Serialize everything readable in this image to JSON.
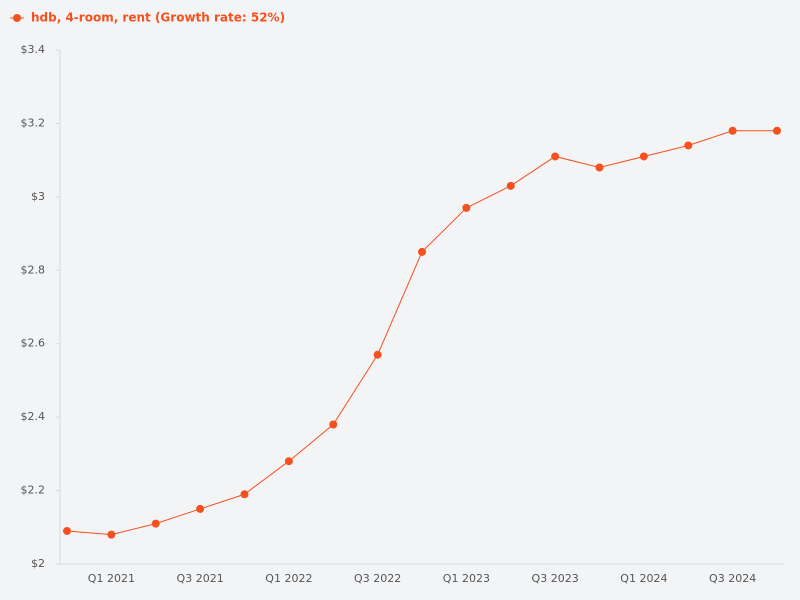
{
  "chart_data": {
    "type": "line",
    "categories": [
      null,
      "Q1 2021",
      null,
      "Q3 2021",
      null,
      "Q1 2022",
      null,
      "Q3 2022",
      null,
      "Q1 2023",
      null,
      "Q3 2023",
      null,
      "Q1 2024",
      null,
      "Q3 2024",
      null
    ],
    "series": [
      {
        "name": "hdb, 4-room, rent (Growth rate: 52%)",
        "color": "#f4511e",
        "values": [
          2.09,
          2.08,
          2.11,
          2.15,
          2.19,
          2.28,
          2.38,
          2.57,
          2.85,
          2.97,
          3.03,
          3.11,
          3.08,
          3.11,
          3.14,
          3.18,
          3.18
        ]
      }
    ],
    "ylim": [
      2,
      3.4
    ],
    "yticks": [
      {
        "value": 2,
        "label": "$2"
      },
      {
        "value": 2.2,
        "label": "$2.2"
      },
      {
        "value": 2.4,
        "label": "$2.4"
      },
      {
        "value": 2.6,
        "label": "$2.6"
      },
      {
        "value": 2.8,
        "label": "$2.8"
      },
      {
        "value": 3,
        "label": "$3"
      },
      {
        "value": 3.2,
        "label": "$3.2"
      },
      {
        "value": 3.4,
        "label": "$3.4"
      }
    ]
  }
}
